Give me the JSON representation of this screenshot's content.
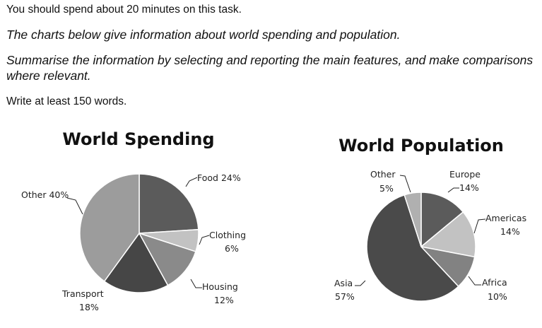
{
  "task": {
    "time_instruction": "You should spend about 20 minutes on this task.",
    "description": "The charts below give information about world spending and population.",
    "instruction": "Summarise the information by selecting and reporting the main features, and make comparisons where relevant.",
    "word_count": "Write at least 150 words."
  },
  "chart_data": [
    {
      "type": "pie",
      "title": "World Spending",
      "slices": [
        {
          "name": "Food",
          "value": 24,
          "label": "Food 24%",
          "color": "#5b5b5b"
        },
        {
          "name": "Clothing",
          "value": 6,
          "label_name": "Clothing",
          "label_value": "6%",
          "color": "#c2c2c2"
        },
        {
          "name": "Housing",
          "value": 12,
          "label_name": "Housing",
          "label_value": "12%",
          "color": "#8a8a8a"
        },
        {
          "name": "Transport",
          "value": 18,
          "label_name": "Transport",
          "label_value": "18%",
          "color": "#464646"
        },
        {
          "name": "Other",
          "value": 40,
          "label": "Other 40%",
          "color": "#9c9c9c"
        }
      ]
    },
    {
      "type": "pie",
      "title": "World Population",
      "slices": [
        {
          "name": "Europe",
          "value": 14,
          "label_name": "Europe",
          "label_value": "14%",
          "color": "#5b5b5b"
        },
        {
          "name": "Americas",
          "value": 14,
          "label_name": "Americas",
          "label_value": "14%",
          "color": "#c2c2c2"
        },
        {
          "name": "Africa",
          "value": 10,
          "label_name": "Africa",
          "label_value": "10%",
          "color": "#828282"
        },
        {
          "name": "Asia",
          "value": 57,
          "label_name": "Asia",
          "label_value": "57%",
          "color": "#4a4a4a"
        },
        {
          "name": "Other",
          "value": 5,
          "label_name": "Other",
          "label_value": "5%",
          "color": "#b0b0b0"
        }
      ]
    }
  ]
}
